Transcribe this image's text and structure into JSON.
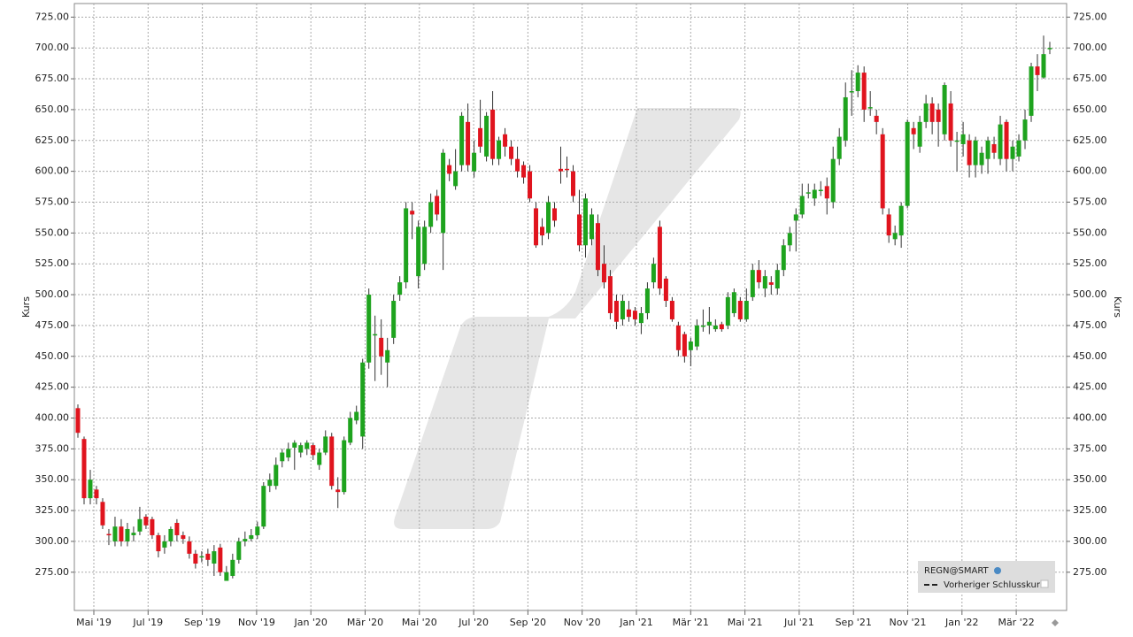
{
  "chart_data": {
    "type": "candlestick",
    "y_label": "Kurs",
    "legend_symbol": "REGN@SMART",
    "legend_prev": "Vorheriger Schlusskurs",
    "up_color": "#1ea31e",
    "down_color": "#e0141e",
    "grid": true,
    "ylim": [
      244,
      736
    ],
    "yticks": [
      {
        "value": 275,
        "label": "275.00"
      },
      {
        "value": 300,
        "label": "300.00"
      },
      {
        "value": 325,
        "label": "325.00"
      },
      {
        "value": 350,
        "label": "350.00"
      },
      {
        "value": 375,
        "label": "375.00"
      },
      {
        "value": 400,
        "label": "400.00"
      },
      {
        "value": 425,
        "label": "425.00"
      },
      {
        "value": 450,
        "label": "450.00"
      },
      {
        "value": 475,
        "label": "475.00"
      },
      {
        "value": 500,
        "label": "500.00"
      },
      {
        "value": 525,
        "label": "525.00"
      },
      {
        "value": 550,
        "label": "550.00"
      },
      {
        "value": 575,
        "label": "575.00"
      },
      {
        "value": 600,
        "label": "600.00"
      },
      {
        "value": 625,
        "label": "625.00"
      },
      {
        "value": 650,
        "label": "650.00"
      },
      {
        "value": 675,
        "label": "675.00"
      },
      {
        "value": 700,
        "label": "700.00"
      },
      {
        "value": 725,
        "label": "725.00"
      }
    ],
    "x_labels": [
      "Mai '19",
      "Jul '19",
      "Sep '19",
      "Nov '19",
      "Jan '20",
      "Mär '20",
      "Mai '20",
      "Jul '20",
      "Sep '20",
      "Nov '20",
      "Jan '21",
      "Mär '21",
      "Mai '21",
      "Jul '21",
      "Sep '21",
      "Nov '21",
      "Jan '22",
      "Mär '22"
    ],
    "open": [
      408,
      383,
      335,
      342,
      332,
      306,
      300,
      312,
      300,
      305,
      308,
      320,
      318,
      305,
      295,
      300,
      315,
      305,
      300,
      290,
      288,
      290,
      282,
      295,
      268,
      272,
      285,
      300,
      302,
      305,
      312,
      345,
      345,
      365,
      368,
      376,
      372,
      375,
      378,
      362,
      372,
      385,
      342,
      340,
      380,
      398,
      385,
      445,
      468,
      465,
      445,
      465,
      500,
      510,
      568,
      515,
      525,
      555,
      580,
      550,
      605,
      588,
      605,
      640,
      600,
      635,
      612,
      650,
      610,
      630,
      620,
      610,
      605,
      600,
      570,
      555,
      550,
      570,
      602,
      602,
      600,
      565,
      540,
      545,
      558,
      525,
      515,
      495,
      480,
      488,
      487,
      477,
      485,
      510,
      555,
      513,
      495,
      475,
      468,
      455,
      458,
      475,
      475,
      472,
      476,
      475,
      485,
      495,
      480,
      498,
      520,
      505,
      510,
      505,
      520,
      540,
      560,
      565,
      583,
      578,
      585,
      588,
      575,
      610,
      625,
      665,
      665,
      680,
      652,
      645,
      630,
      565,
      545,
      548,
      572,
      635,
      620,
      640,
      655,
      650,
      630,
      655,
      625,
      622,
      625,
      605,
      605,
      610,
      622,
      610,
      640,
      610,
      612,
      625,
      645,
      685,
      676,
      700
    ],
    "high": [
      411,
      385,
      358,
      345,
      335,
      310,
      320,
      318,
      315,
      312,
      328,
      322,
      320,
      307,
      305,
      312,
      318,
      308,
      304,
      293,
      292,
      294,
      297,
      298,
      280,
      290,
      303,
      308,
      310,
      316,
      348,
      355,
      368,
      375,
      380,
      382,
      380,
      382,
      380,
      375,
      390,
      388,
      352,
      385,
      405,
      410,
      448,
      505,
      483,
      480,
      465,
      500,
      515,
      575,
      575,
      560,
      560,
      582,
      585,
      618,
      610,
      618,
      648,
      655,
      625,
      658,
      648,
      665,
      628,
      635,
      625,
      620,
      608,
      605,
      575,
      562,
      580,
      575,
      620,
      612,
      605,
      585,
      582,
      570,
      565,
      540,
      520,
      500,
      500,
      495,
      490,
      490,
      510,
      530,
      560,
      515,
      498,
      478,
      470,
      465,
      480,
      488,
      490,
      480,
      478,
      502,
      505,
      498,
      505,
      525,
      528,
      520,
      515,
      525,
      545,
      555,
      570,
      590,
      590,
      590,
      592,
      595,
      620,
      635,
      672,
      682,
      686,
      685,
      665,
      650,
      635,
      570,
      556,
      575,
      642,
      640,
      645,
      662,
      660,
      655,
      672,
      665,
      632,
      640,
      630,
      628,
      620,
      628,
      628,
      645,
      642,
      625,
      630,
      650,
      688,
      695,
      710,
      705
    ],
    "low": [
      384,
      330,
      330,
      330,
      310,
      297,
      296,
      296,
      296,
      300,
      305,
      310,
      302,
      287,
      290,
      296,
      300,
      298,
      286,
      278,
      283,
      280,
      272,
      272,
      270,
      270,
      282,
      296,
      300,
      302,
      310,
      340,
      342,
      360,
      365,
      358,
      368,
      370,
      366,
      358,
      370,
      342,
      327,
      338,
      378,
      395,
      375,
      440,
      430,
      435,
      425,
      460,
      495,
      505,
      545,
      505,
      520,
      550,
      560,
      520,
      592,
      585,
      600,
      600,
      595,
      615,
      608,
      605,
      605,
      612,
      605,
      595,
      590,
      575,
      538,
      540,
      545,
      555,
      590,
      595,
      575,
      535,
      530,
      540,
      515,
      505,
      480,
      472,
      475,
      478,
      475,
      468,
      480,
      505,
      500,
      490,
      478,
      450,
      445,
      442,
      455,
      470,
      468,
      470,
      470,
      472,
      482,
      478,
      478,
      495,
      505,
      498,
      500,
      500,
      515,
      535,
      535,
      562,
      578,
      572,
      580,
      565,
      570,
      605,
      620,
      645,
      660,
      640,
      645,
      630,
      565,
      542,
      540,
      538,
      570,
      618,
      615,
      635,
      630,
      620,
      625,
      620,
      600,
      612,
      595,
      595,
      598,
      598,
      610,
      605,
      600,
      600,
      608,
      618,
      640,
      665,
      675,
      695
    ],
    "close": [
      388,
      335,
      350,
      335,
      313,
      305,
      312,
      300,
      310,
      307,
      318,
      313,
      305,
      292,
      300,
      310,
      305,
      302,
      290,
      282,
      288,
      285,
      292,
      275,
      275,
      285,
      300,
      302,
      305,
      312,
      345,
      350,
      362,
      372,
      375,
      380,
      378,
      380,
      370,
      372,
      385,
      345,
      340,
      382,
      400,
      405,
      445,
      500,
      468,
      450,
      455,
      495,
      510,
      570,
      565,
      555,
      555,
      575,
      565,
      615,
      598,
      600,
      645,
      605,
      615,
      620,
      645,
      610,
      625,
      620,
      610,
      600,
      595,
      578,
      540,
      548,
      575,
      560,
      600,
      601,
      580,
      540,
      578,
      565,
      520,
      510,
      485,
      478,
      495,
      482,
      480,
      485,
      505,
      525,
      505,
      495,
      480,
      455,
      450,
      462,
      475,
      475,
      478,
      475,
      472,
      498,
      502,
      480,
      495,
      520,
      510,
      515,
      508,
      520,
      540,
      550,
      565,
      580,
      583,
      585,
      585,
      578,
      610,
      628,
      660,
      665,
      680,
      650,
      652,
      640,
      570,
      548,
      550,
      572,
      640,
      630,
      640,
      655,
      640,
      640,
      670,
      625,
      625,
      630,
      605,
      625,
      615,
      625,
      615,
      638,
      610,
      620,
      625,
      642,
      685,
      678,
      695,
      700
    ]
  }
}
